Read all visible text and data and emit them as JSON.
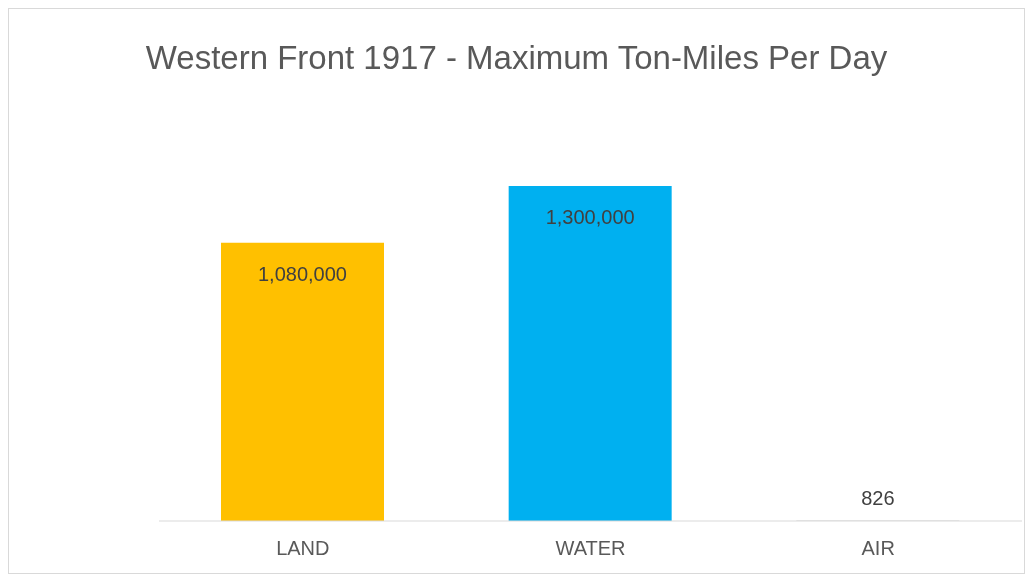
{
  "chart_data": {
    "type": "bar",
    "title": "Western Front 1917 - Maximum Ton-Miles Per Day",
    "categories": [
      "LAND",
      "WATER",
      "AIR"
    ],
    "values": [
      1080000,
      1300000,
      826
    ],
    "value_labels": [
      "1,080,000",
      "1,300,000",
      "826"
    ],
    "colors": [
      "#ffc000",
      "#00b0f0",
      "#a5a5a5"
    ]
  }
}
